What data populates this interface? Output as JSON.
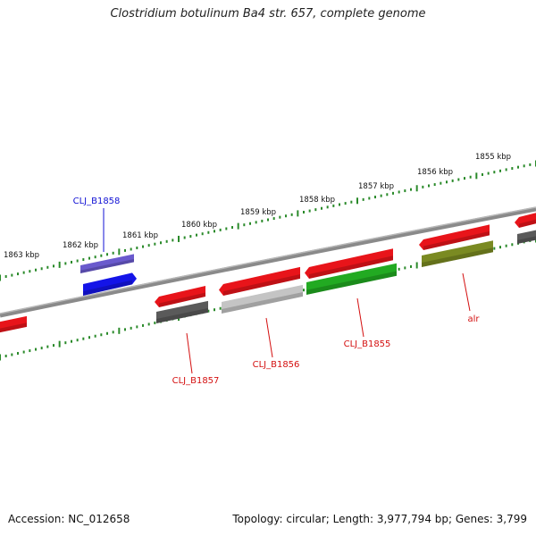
{
  "title": "Clostridium botulinum Ba4 str. 657, complete genome",
  "footer": {
    "accession": "Accession: NC_012658",
    "summary": "Topology: circular; Length: 3,977,794 bp; Genes: 3,799"
  },
  "colors": {
    "red": "#e8141a",
    "dark_gray": "#5a5a5a",
    "light_gray": "#c4c4c4",
    "blue": "#1414e8",
    "purple": "#6a5acd",
    "green": "#22aa22",
    "olive": "#7a8a22",
    "tick_green": "#2a8a2a",
    "backbone": "#8a8a8a",
    "label_red": "#d41010",
    "label_blue": "#1010d4"
  },
  "ticks": [
    {
      "label": "1863 kbp"
    },
    {
      "label": "1862 kbp"
    },
    {
      "label": "1861 kbp"
    },
    {
      "label": "1860 kbp"
    },
    {
      "label": "1859 kbp"
    },
    {
      "label": "1858 kbp"
    },
    {
      "label": "1857 kbp"
    },
    {
      "label": "1856 kbp"
    },
    {
      "label": "1855 kbp"
    }
  ],
  "gene_labels": [
    {
      "text": "CLJ_B1858",
      "color": "blue"
    },
    {
      "text": "CLJ_B1857",
      "color": "red"
    },
    {
      "text": "CLJ_B1856",
      "color": "red"
    },
    {
      "text": "CLJ_B1855",
      "color": "red"
    },
    {
      "text": "alr",
      "color": "red"
    }
  ]
}
